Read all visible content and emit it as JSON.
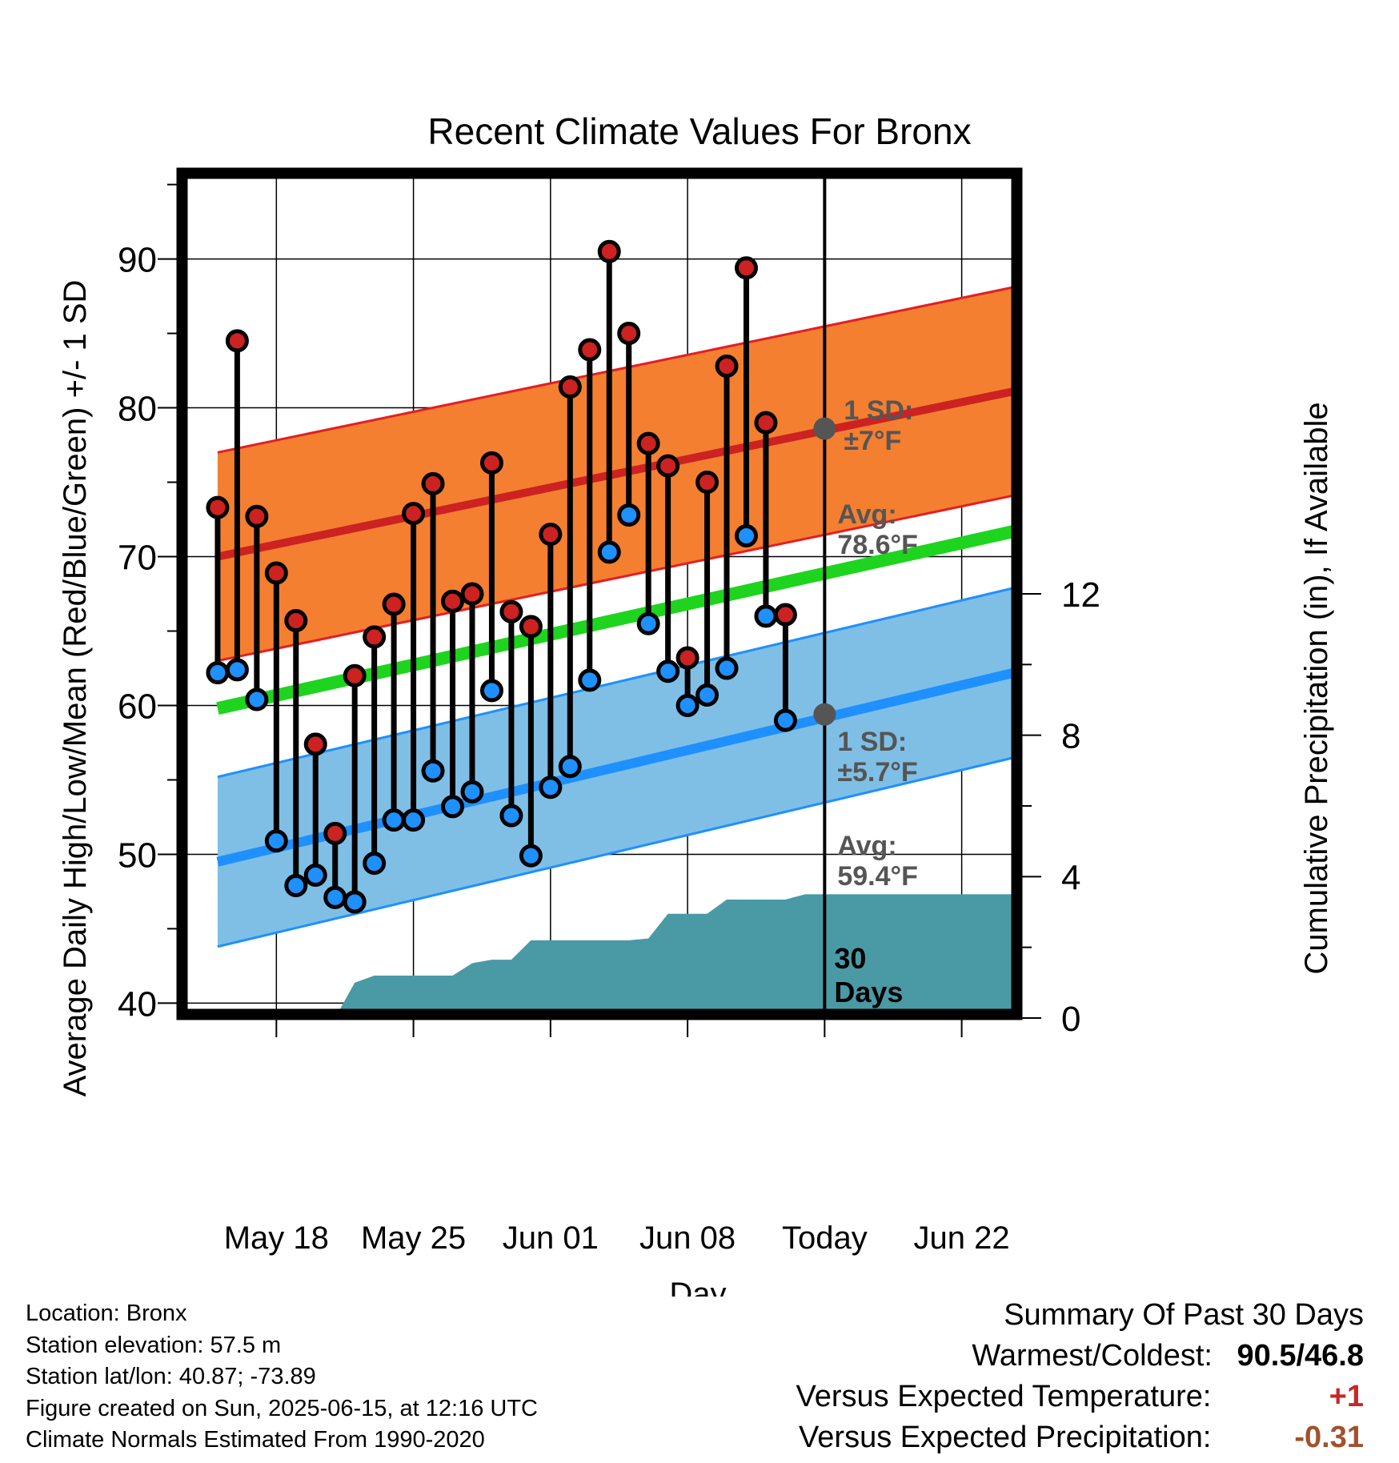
{
  "chart_data": {
    "type": "line",
    "title": "Recent Climate Values For Bronx",
    "xlabel": "Day",
    "ylabel": "Average Daily High/Low/Mean (Red/Blue/Green) +/- 1 SD",
    "y2label": "Cumulative Precipitation (in), If Available",
    "ylim": [
      39,
      96
    ],
    "y_ticks": [
      40,
      50,
      60,
      70,
      80,
      90
    ],
    "y2lim": [
      0,
      24
    ],
    "y2_ticks": [
      0,
      4,
      8,
      12
    ],
    "xlim": [
      "2025-05-13",
      "2025-06-25"
    ],
    "x_ticks": [
      {
        "date": "2025-05-18",
        "label": "May 18"
      },
      {
        "date": "2025-05-25",
        "label": "May 25"
      },
      {
        "date": "2025-06-01",
        "label": "Jun 01"
      },
      {
        "date": "2025-06-08",
        "label": "Jun 08"
      },
      {
        "date": "2025-06-15",
        "label": "Today"
      },
      {
        "date": "2025-06-22",
        "label": "Jun 22"
      }
    ],
    "today": "2025-06-15",
    "days_label": [
      "30",
      "Days"
    ],
    "normals": {
      "dates": [
        "2025-05-15",
        "2025-06-25"
      ],
      "high_mean": [
        70.0,
        81.2
      ],
      "high_sd": 7,
      "low_mean": [
        49.5,
        62.3
      ],
      "low_sd": 5.7,
      "avg_mean": [
        59.8,
        71.8
      ]
    },
    "annotations": {
      "high_sd_label": [
        "1 SD:",
        "±7°F"
      ],
      "high_avg_label": [
        "Avg:",
        "78.6°F"
      ],
      "high_avg_value": 78.6,
      "low_sd_label": [
        "1 SD:",
        "±5.7°F"
      ],
      "low_avg_label": [
        "Avg:",
        "59.4°F"
      ],
      "low_avg_value": 59.4
    },
    "daily": {
      "start_date": "2025-05-15",
      "high": [
        73.3,
        84.5,
        72.7,
        68.9,
        65.7,
        57.4,
        51.4,
        62.0,
        64.6,
        66.8,
        72.9,
        74.9,
        67.0,
        67.5,
        76.3,
        66.3,
        65.3,
        71.5,
        81.4,
        83.9,
        90.5,
        85.0,
        77.6,
        76.1,
        63.2,
        75.0,
        82.8,
        89.4,
        79.0,
        66.1
      ],
      "low": [
        62.2,
        62.4,
        60.4,
        50.9,
        47.9,
        48.6,
        47.1,
        46.8,
        49.4,
        52.3,
        52.3,
        55.6,
        53.2,
        54.2,
        61.0,
        52.6,
        49.9,
        54.5,
        55.9,
        61.7,
        70.3,
        72.8,
        65.5,
        62.3,
        60.0,
        60.7,
        62.5,
        71.4,
        66.0,
        59.0
      ]
    },
    "precip": {
      "dates": [
        "2025-05-13",
        "2025-05-21",
        "2025-05-22",
        "2025-05-23",
        "2025-05-27",
        "2025-05-28",
        "2025-05-29",
        "2025-05-30",
        "2025-05-31",
        "2025-06-01",
        "2025-06-05",
        "2025-06-06",
        "2025-06-07",
        "2025-06-09",
        "2025-06-10",
        "2025-06-13",
        "2025-06-14",
        "2025-06-25"
      ],
      "cumulative": [
        0,
        0,
        1.0,
        1.2,
        1.2,
        1.55,
        1.65,
        1.65,
        2.2,
        2.2,
        2.2,
        2.25,
        2.95,
        2.95,
        3.35,
        3.35,
        3.5,
        3.5
      ]
    },
    "colors": {
      "high": "#cc2222",
      "high_band": "#f47f30",
      "high_band_edge": "#e31e24",
      "low": "#1e90ff",
      "low_band": "#7fbfe6",
      "mean": "#1ed41e",
      "precip": "#4a9aa6",
      "label": "#555555"
    }
  },
  "info": {
    "lines": [
      "Location: Bronx",
      "Station elevation: 57.5 m",
      "Station lat/lon: 40.87; -73.89",
      "Figure created on Sun, 2025-06-15, at 12:16 UTC",
      "Climate Normals Estimated From 1990-2020"
    ]
  },
  "summary": {
    "title": "Summary Of Past 30 Days",
    "warmest_coldest_label": "Warmest/Coldest:",
    "warmest_coldest_value": "90.5/46.8",
    "temp_label": "Versus Expected Temperature:",
    "temp_value": "+1",
    "temp_color": "#c62828",
    "precip_label": "Versus Expected Precipitation:",
    "precip_value": "-0.31",
    "precip_color": "#a0522d"
  }
}
